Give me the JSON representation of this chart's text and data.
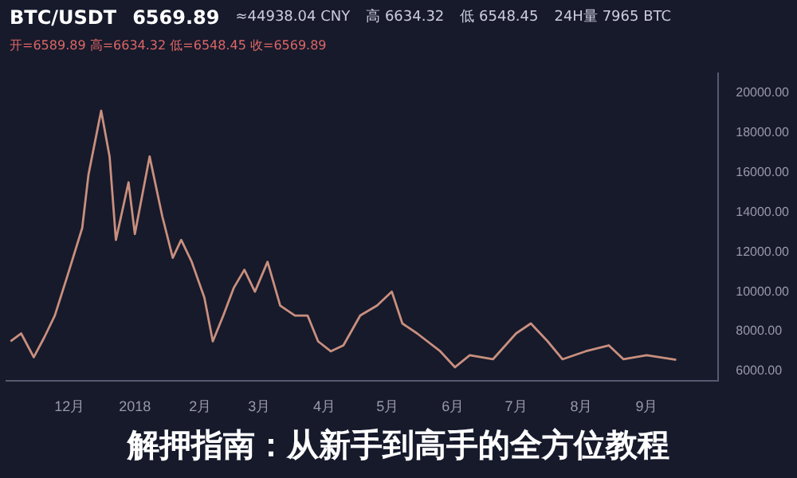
{
  "chart_data": {
    "type": "line",
    "title": "解押指南：从新手到高手的全方位教程",
    "annotations": [
      "BTC/USDT",
      "6569.89",
      "≈44938.04 CNY",
      "高 6634.32",
      "低 6548.45",
      "24H量 7965 BTC",
      "开=6589.89 高=6634.32 低=6548.45 收=6569.89"
    ],
    "x": [
      "2017-11-03",
      "2017-11-08",
      "2017-11-14",
      "2017-11-19",
      "2017-11-24",
      "2017-11-30",
      "2017-12-07",
      "2017-12-10",
      "2017-12-16",
      "2017-12-20",
      "2017-12-23",
      "2017-12-29",
      "2018-01-01",
      "2018-01-08",
      "2018-01-14",
      "2018-01-19",
      "2018-01-23",
      "2018-01-28",
      "2018-02-03",
      "2018-02-07",
      "2018-02-12",
      "2018-02-17",
      "2018-02-22",
      "2018-02-27",
      "2018-03-05",
      "2018-03-11",
      "2018-03-18",
      "2018-03-24",
      "2018-03-29",
      "2018-04-04",
      "2018-04-10",
      "2018-04-18",
      "2018-04-26",
      "2018-05-03",
      "2018-05-08",
      "2018-05-15",
      "2018-05-26",
      "2018-06-02",
      "2018-06-09",
      "2018-06-20",
      "2018-07-01",
      "2018-07-08",
      "2018-07-16",
      "2018-07-23",
      "2018-08-03",
      "2018-08-14",
      "2018-08-21",
      "2018-09-01",
      "2018-09-15"
    ],
    "series": [
      {
        "color": "#c98f7e",
        "values": [
          7500,
          7900,
          6700,
          7700,
          8800,
          10800,
          13200,
          15900,
          19100,
          16800,
          12600,
          15500,
          12900,
          16800,
          13800,
          11700,
          12600,
          11500,
          9700,
          7500,
          8800,
          10200,
          11100,
          10000,
          11500,
          9300,
          8800,
          8800,
          7500,
          7000,
          7300,
          8800,
          9300,
          10000,
          8400,
          7900,
          7000,
          6200,
          6800,
          6600,
          7900,
          8400,
          7500,
          6600,
          7000,
          7300,
          6600,
          6800,
          6570
        ]
      }
    ],
    "xlim": [
      "2017-11-01",
      "2018-10-05"
    ],
    "xticks": [
      {
        "value": "2017-12-01",
        "label": "12月"
      },
      {
        "value": "2018-01-01",
        "label": "2018"
      },
      {
        "value": "2018-02-01",
        "label": "2月"
      },
      {
        "value": "2018-03-01",
        "label": "3月"
      },
      {
        "value": "2018-04-01",
        "label": "4月"
      },
      {
        "value": "2018-05-01",
        "label": "5月"
      },
      {
        "value": "2018-06-01",
        "label": "6月"
      },
      {
        "value": "2018-07-01",
        "label": "7月"
      },
      {
        "value": "2018-08-01",
        "label": "8月"
      },
      {
        "value": "2018-09-01",
        "label": "9月"
      }
    ],
    "ylim": [
      5500,
      21000
    ],
    "yticks": [
      {
        "value": 6000,
        "label": "6000.00"
      },
      {
        "value": 8000,
        "label": "8000.00"
      },
      {
        "value": 10000,
        "label": "10000.00"
      },
      {
        "value": 12000,
        "label": "12000.00"
      },
      {
        "value": 14000,
        "label": "14000.00"
      },
      {
        "value": 16000,
        "label": "16000.00"
      },
      {
        "value": 18000,
        "label": "18000.00"
      },
      {
        "value": 20000,
        "label": "20000.00"
      }
    ],
    "grid": false,
    "legend": false,
    "marker": "none",
    "line_style": "solid"
  }
}
